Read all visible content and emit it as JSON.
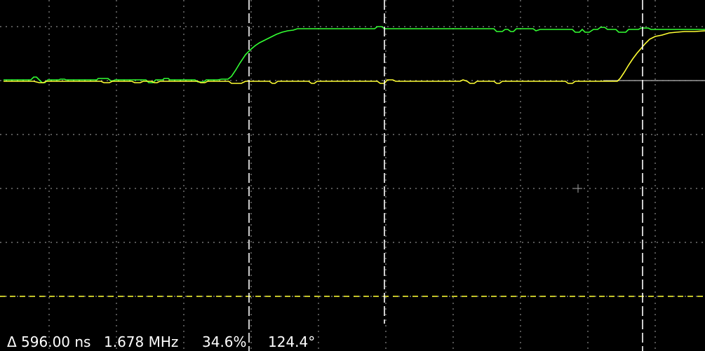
{
  "scope": {
    "background": "#000000",
    "grid_color": "#8a8a8a",
    "grid_style": "dotted",
    "channels": [
      {
        "id": "ch1",
        "color": "#ffff33"
      },
      {
        "id": "ch2",
        "color": "#33ff33"
      }
    ],
    "cursor_color": "#ffffff",
    "trigger_level_color": "#ffff33"
  },
  "measurements": {
    "delta_time": "Δ 596.00 ns",
    "frequency": "1.678 MHz",
    "duty_cycle": "34.6%",
    "phase": "124.4°"
  }
}
